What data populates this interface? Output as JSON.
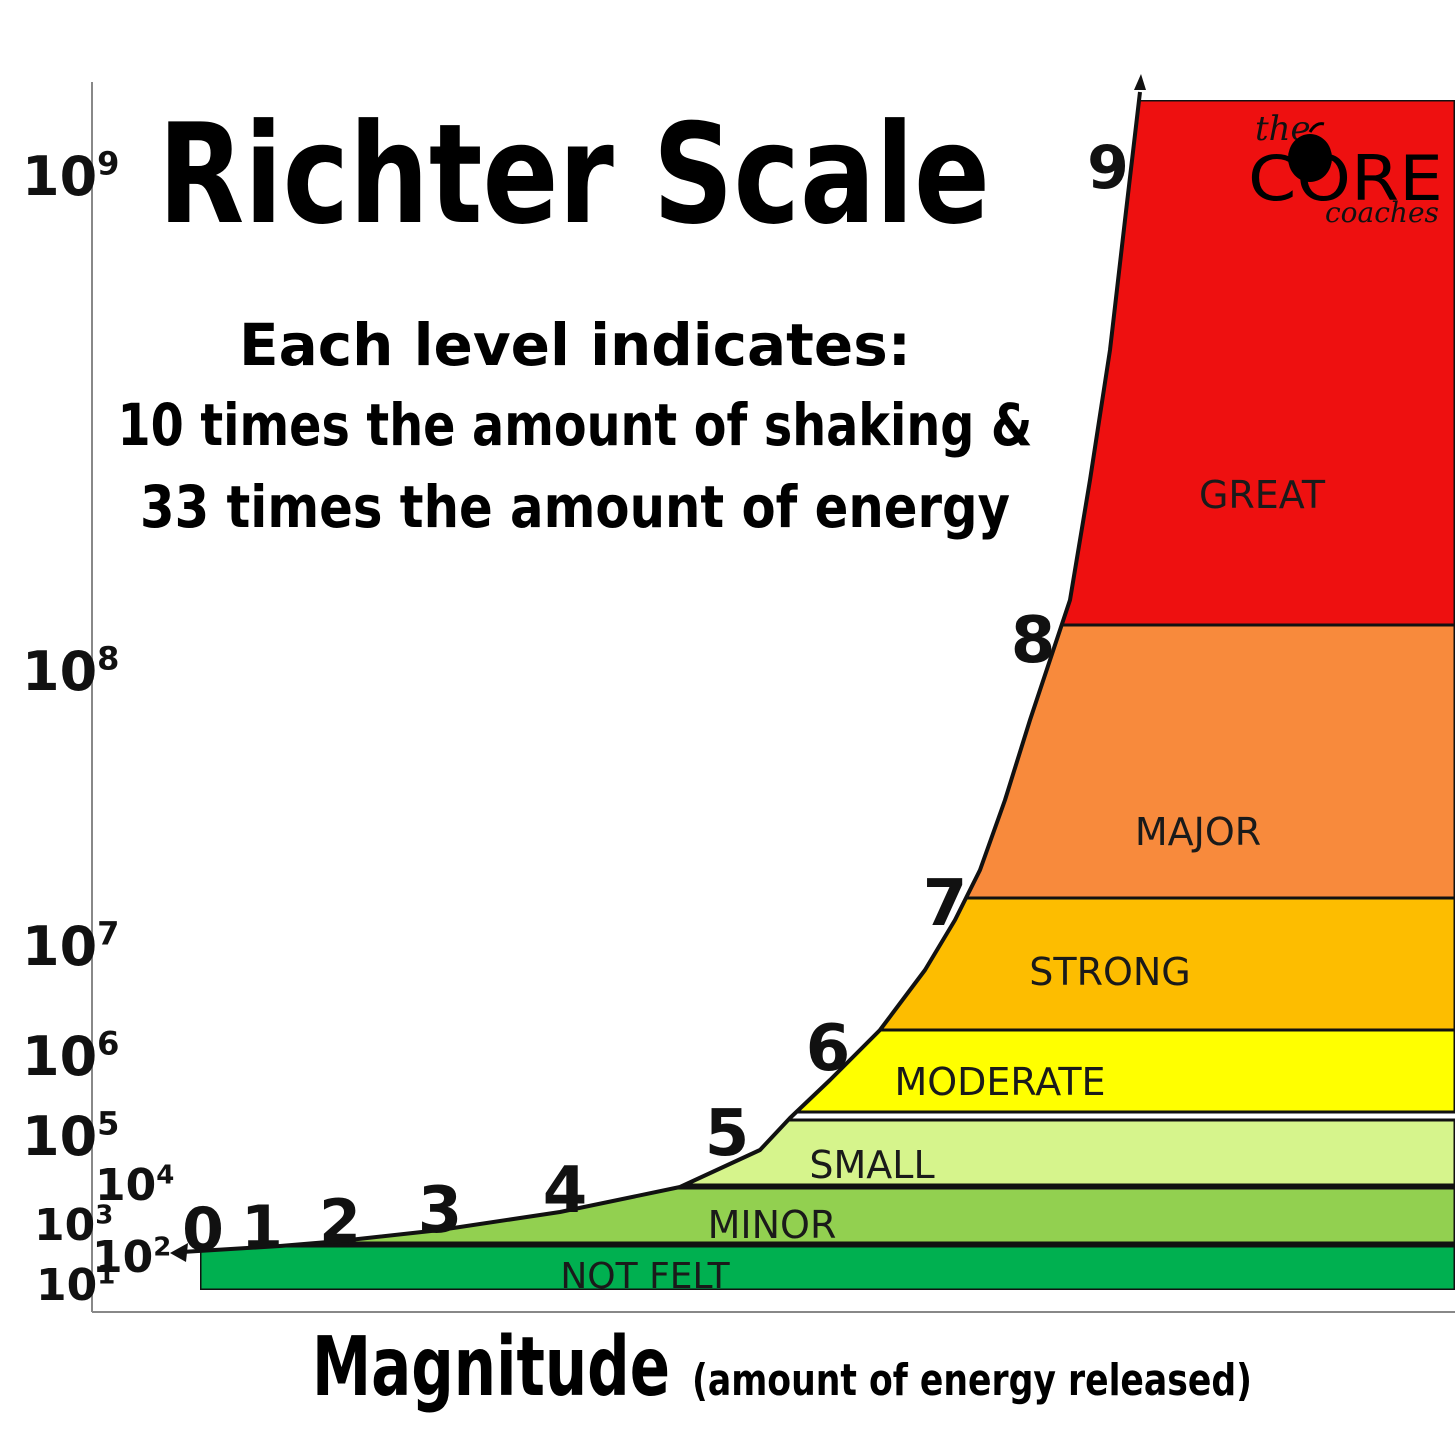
{
  "title": "Richter Scale",
  "subtitle_lines": [
    "Each level indicates:",
    "10 times the amount of shaking &",
    "33 times the amount of energy"
  ],
  "x_axis_title": "Magnitude",
  "x_axis_subtitle": "(amount of energy released)",
  "logo": {
    "top": "the",
    "main": "CORE",
    "bottom": "coaches"
  },
  "y_ticks": [
    {
      "base": "10",
      "exp": "9"
    },
    {
      "base": "10",
      "exp": "8"
    },
    {
      "base": "10",
      "exp": "7"
    },
    {
      "base": "10",
      "exp": "6"
    },
    {
      "base": "10",
      "exp": "5"
    },
    {
      "base": "10",
      "exp": "4"
    },
    {
      "base": "10",
      "exp": "3"
    },
    {
      "base": "10",
      "exp": "2"
    },
    {
      "base": "10",
      "exp": "1"
    }
  ],
  "magnitudes": [
    "0",
    "1",
    "2",
    "3",
    "4",
    "5",
    "6",
    "7",
    "8",
    "9"
  ],
  "bands": [
    {
      "label": "GREAT",
      "color": "#ee1010"
    },
    {
      "label": "MAJOR",
      "color": "#f88a3c"
    },
    {
      "label": "STRONG",
      "color": "#fdbd00"
    },
    {
      "label": "MODERATE",
      "color": "#ffff00"
    },
    {
      "label": "SMALL",
      "color": "#d6f48c"
    },
    {
      "label": "MINOR",
      "color": "#92d050"
    },
    {
      "label": "NOT FELT",
      "color": "#00b050"
    }
  ]
}
